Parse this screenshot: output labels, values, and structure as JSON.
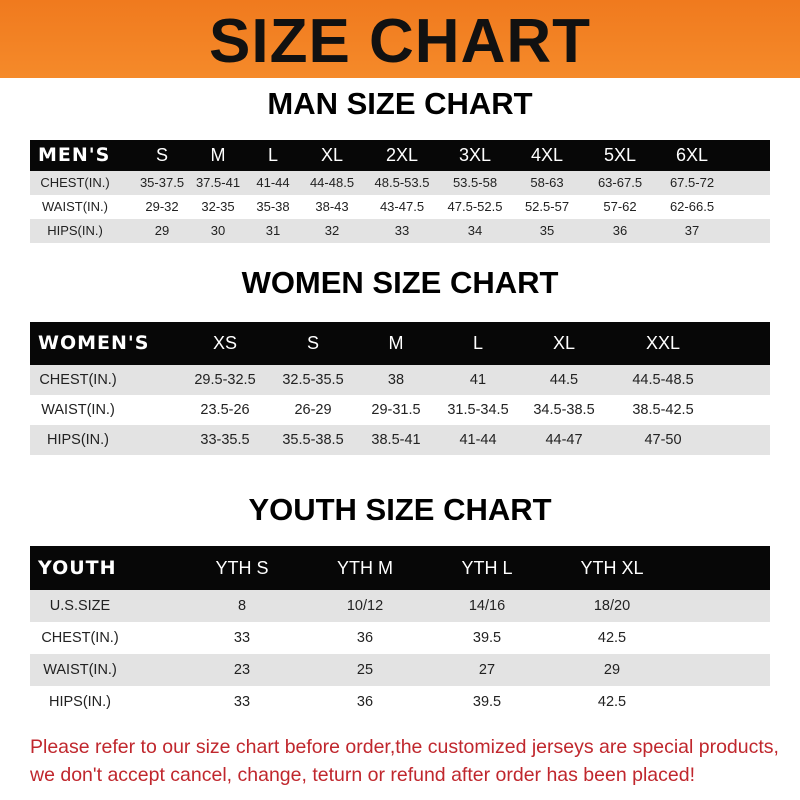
{
  "banner": {
    "title": "SIZE CHART",
    "color": "#f58220"
  },
  "men": {
    "title": "MAN SIZE CHART",
    "header": [
      "MEN'S",
      "S",
      "M",
      "L",
      "XL",
      "2XL",
      "3XL",
      "4XL",
      "5XL",
      "6XL"
    ],
    "rows": [
      [
        "CHEST(IN.)",
        "35-37.5",
        "37.5-41",
        "41-44",
        "44-48.5",
        "48.5-53.5",
        "53.5-58",
        "58-63",
        "63-67.5",
        "67.5-72"
      ],
      [
        "WAIST(IN.)",
        "29-32",
        "32-35",
        "35-38",
        "38-43",
        "43-47.5",
        "47.5-52.5",
        "52.5-57",
        "57-62",
        "62-66.5"
      ],
      [
        "HIPS(IN.)",
        "29",
        "30",
        "31",
        "32",
        "33",
        "34",
        "35",
        "36",
        "37"
      ]
    ]
  },
  "women": {
    "title": "WOMEN SIZE CHART",
    "header": [
      "WOMEN'S",
      "XS",
      "S",
      "M",
      "L",
      "XL",
      "XXL"
    ],
    "rows": [
      [
        "CHEST(IN.)",
        "29.5-32.5",
        "32.5-35.5",
        "38",
        "41",
        "44.5",
        "44.5-48.5"
      ],
      [
        "WAIST(IN.)",
        "23.5-26",
        "26-29",
        "29-31.5",
        "31.5-34.5",
        "34.5-38.5",
        "38.5-42.5"
      ],
      [
        "HIPS(IN.)",
        "33-35.5",
        "35.5-38.5",
        "38.5-41",
        "41-44",
        "44-47",
        "47-50"
      ]
    ]
  },
  "youth": {
    "title": "YOUTH SIZE CHART",
    "header": [
      "YOUTH",
      "YTH S",
      "YTH M",
      "YTH L",
      "YTH XL"
    ],
    "rows": [
      [
        "U.S.SIZE",
        "8",
        "10/12",
        "14/16",
        "18/20"
      ],
      [
        "CHEST(IN.)",
        "33",
        "36",
        "39.5",
        "42.5"
      ],
      [
        "WAIST(IN.)",
        "23",
        "25",
        "27",
        "29"
      ],
      [
        "HIPS(IN.)",
        "33",
        "36",
        "39.5",
        "42.5"
      ]
    ]
  },
  "footer": {
    "line1": "Please refer to our size chart before order,the customized jerseys are special products,",
    "line2": "we don't accept cancel, change, teturn or refund after order has been placed!",
    "color": "#c0272d"
  }
}
